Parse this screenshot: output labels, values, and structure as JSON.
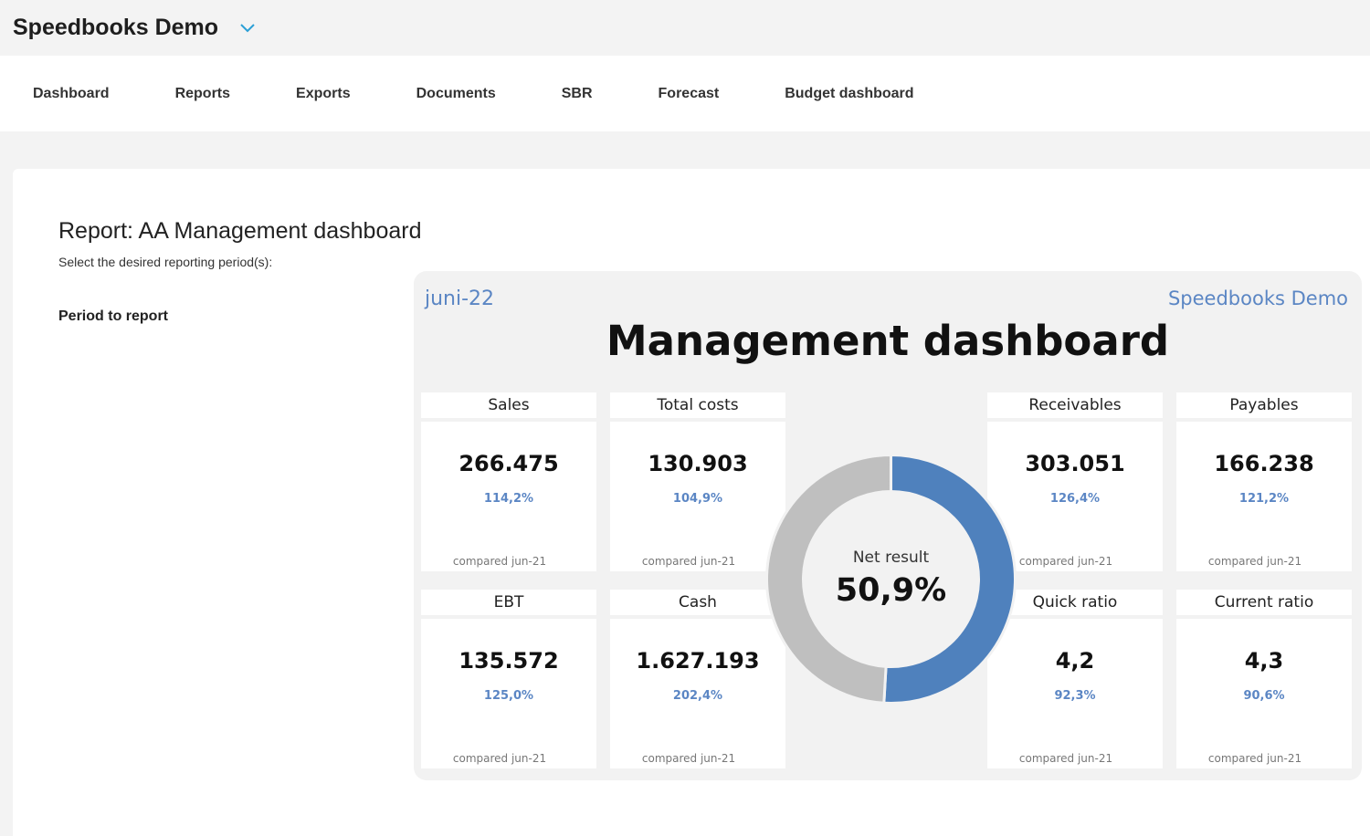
{
  "app": {
    "company_name": "Speedbooks Demo"
  },
  "nav": {
    "items": [
      {
        "label": "Dashboard"
      },
      {
        "label": "Reports"
      },
      {
        "label": "Exports"
      },
      {
        "label": "Documents"
      },
      {
        "label": "SBR"
      },
      {
        "label": "Forecast"
      },
      {
        "label": "Budget dashboard"
      }
    ]
  },
  "report": {
    "title": "Report: AA Management dashboard",
    "subtitle": "Select the desired reporting period(s):",
    "period_label": "Period to report"
  },
  "dashboard": {
    "period": "juni-22",
    "company": "Speedbooks Demo",
    "title": "Management dashboard",
    "kpis": [
      {
        "label": "Sales",
        "value": "266.475",
        "pct": "114,2%",
        "compared": "compared jun-21"
      },
      {
        "label": "Total costs",
        "value": "130.903",
        "pct": "104,9%",
        "compared": "compared jun-21"
      },
      {
        "label": "Receivables",
        "value": "303.051",
        "pct": "126,4%",
        "compared": "compared jun-21"
      },
      {
        "label": "Payables",
        "value": "166.238",
        "pct": "121,2%",
        "compared": "compared jun-21"
      },
      {
        "label": "EBT",
        "value": "135.572",
        "pct": "125,0%",
        "compared": "compared jun-21"
      },
      {
        "label": "Cash",
        "value": "1.627.193",
        "pct": "202,4%",
        "compared": "compared jun-21"
      },
      {
        "label": "Quick ratio",
        "value": "4,2",
        "pct": "92,3%",
        "compared": "compared jun-21"
      },
      {
        "label": "Current ratio",
        "value": "4,3",
        "pct": "90,6%",
        "compared": "compared jun-21"
      }
    ],
    "net_result": {
      "label": "Net result",
      "value": "50,9%",
      "fraction": 0.509,
      "colors": {
        "filled": "#4f81bd",
        "rest": "#bfbfbf"
      }
    }
  },
  "colors": {
    "accent": "#5b86c4",
    "page_bg": "#f3f3f3"
  }
}
